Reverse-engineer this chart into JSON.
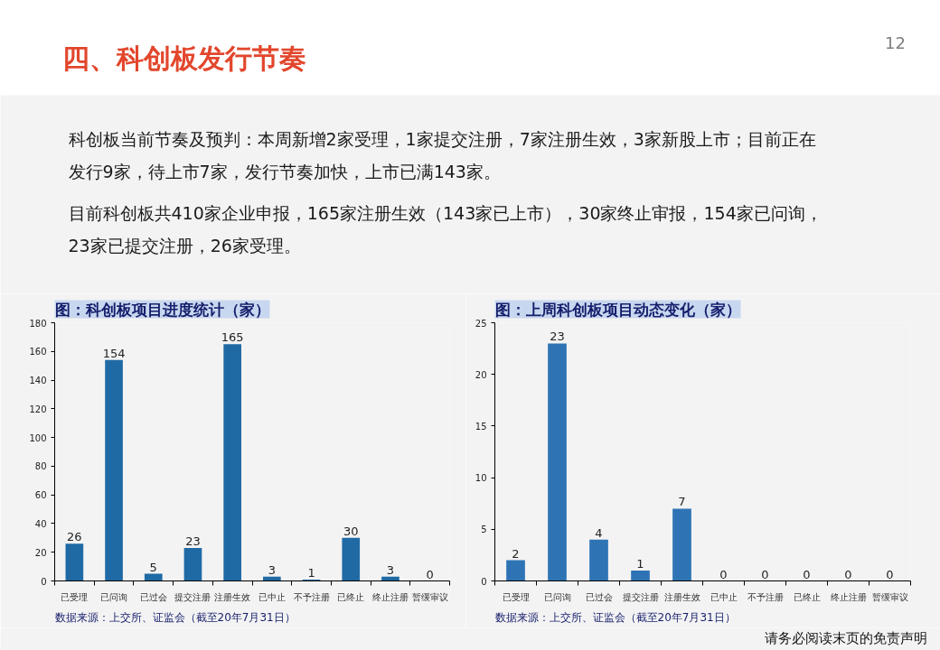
{
  "chart_data": [
    {
      "type": "other",
      "title": "四、科创板发行节奏",
      "annotations": [
        "12",
        "科创板当前节奏及预判：本周新增2家受理，1家提交注册，7家注册生效，3家新股上市；目前正在发行9家，待上市7家，发行节奏加快，上市已满143家。",
        "目前科创板共410家企业申报，165家注册生效（143家已上市），30家终止审报，154家已问询，23家已提交注册，26家受理。",
        "请务必阅读末页的免责声明"
      ]
    },
    {
      "type": "bar",
      "title": "图：科创板项目进度统计（家）",
      "categories": [
        "已受理",
        "已问询",
        "已过会",
        "提交注册",
        "注册生效",
        "已中止",
        "不予注册",
        "已终止",
        "终止注册",
        "暂缓审议"
      ],
      "values": [
        26,
        154,
        5,
        23,
        165,
        3,
        1,
        30,
        3,
        0
      ],
      "color": "#1f6aa5",
      "ylim": [
        0,
        180
      ],
      "yticks": [
        0,
        20,
        40,
        60,
        80,
        100,
        120,
        140,
        160,
        180
      ],
      "data_labels": true,
      "annotations": [
        "数据来源：上交所、证监会（截至20年7月31日）"
      ]
    },
    {
      "type": "bar",
      "title": "图：上周科创板项目动态变化（家）",
      "categories": [
        "已受理",
        "已问询",
        "已过会",
        "提交注册",
        "注册生效",
        "已中止",
        "不予注册",
        "已终止",
        "终止注册",
        "暂缓审议"
      ],
      "values": [
        2,
        23,
        4,
        1,
        7,
        0,
        0,
        0,
        0,
        0
      ],
      "color": "#2e74b5",
      "ylim": [
        0,
        25
      ],
      "yticks": [
        0,
        5,
        10,
        15,
        20,
        25
      ],
      "data_labels": true,
      "annotations": [
        "数据来源：上交所、证监会（截至20年7月31日）"
      ]
    }
  ]
}
